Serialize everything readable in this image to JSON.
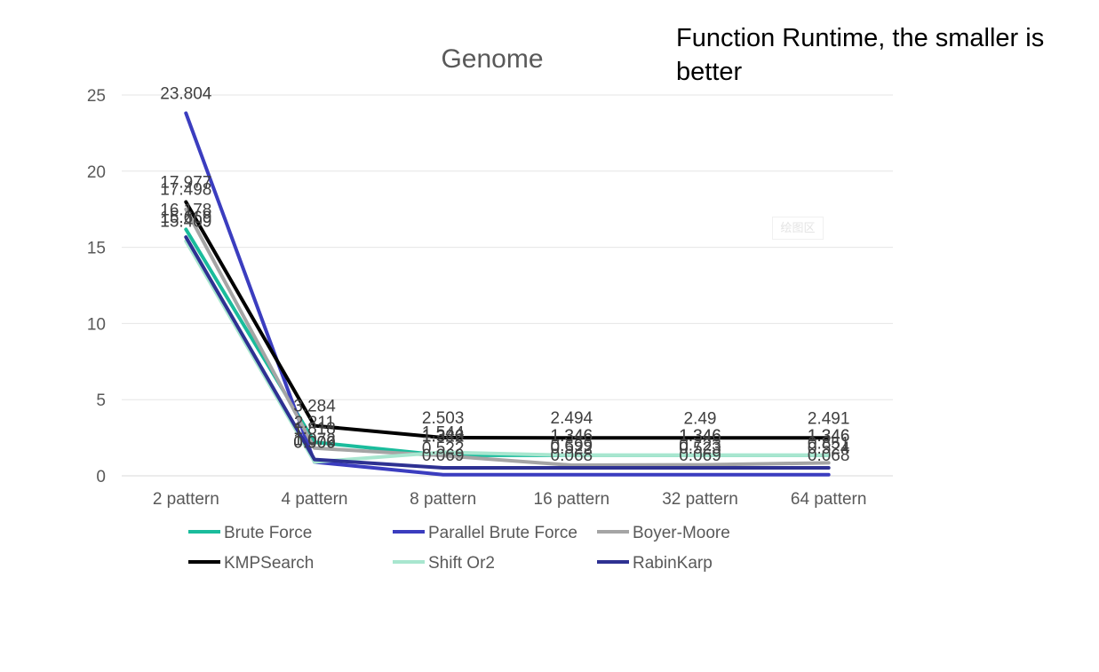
{
  "note": "Function Runtime, the smaller is better",
  "plot_area_badge": "绘图区",
  "chart_data": {
    "type": "line",
    "title": "Genome",
    "xlabel": "",
    "ylabel": "",
    "categories": [
      "2 pattern",
      "4 pattern",
      "8 pattern",
      "16 pattern",
      "32 pattern",
      "64 pattern"
    ],
    "ylim": [
      0,
      25
    ],
    "yticks": [
      "0",
      "5",
      "10",
      "15",
      "20",
      "25"
    ],
    "grid": true,
    "legend_position": "bottom",
    "series": [
      {
        "name": "Brute Force",
        "color": "#1ABC9C",
        "values": [
          16.178,
          2.211,
          1.346,
          1.346,
          1.346,
          1.346
        ],
        "labels": [
          "16.178",
          "2.211",
          "1.346",
          "1.346",
          "1.346",
          "1.346"
        ]
      },
      {
        "name": "Parallel Brute Force",
        "color": "#3B3DBF",
        "values": [
          23.804,
          0.906,
          0.069,
          0.068,
          0.069,
          0.068
        ],
        "labels": [
          "23.804",
          "0.906",
          "0.069",
          "0.068",
          "0.069",
          "0.068"
        ]
      },
      {
        "name": "Boyer-Moore",
        "color": "#A5A5A5",
        "values": [
          17.498,
          1.818,
          1.322,
          0.699,
          0.723,
          0.851
        ],
        "labels": [
          "17.498",
          "1.818",
          "1.322",
          "0.699",
          "0.723",
          "0.851"
        ]
      },
      {
        "name": "KMPSearch",
        "color": "#000000",
        "values": [
          17.977,
          3.284,
          2.503,
          2.494,
          2.49,
          2.491
        ],
        "labels": [
          "17.977",
          "3.284",
          "2.503",
          "2.494",
          "2.49",
          "2.491"
        ]
      },
      {
        "name": "Shift Or2",
        "color": "#A8E6CF",
        "values": [
          15.409,
          0.909,
          1.544,
          1.346,
          1.346,
          1.346
        ],
        "labels": [
          "15.409",
          "0.909",
          "1.544",
          "1.346",
          "1.346",
          "1.346"
        ]
      },
      {
        "name": "RabinKarp",
        "color": "#2E3192",
        "values": [
          15.669,
          1.072,
          0.522,
          0.522,
          0.523,
          0.524
        ],
        "labels": [
          "15.669",
          "1.072",
          "0.522",
          "0.522",
          "0.523",
          "0.524"
        ]
      }
    ]
  }
}
